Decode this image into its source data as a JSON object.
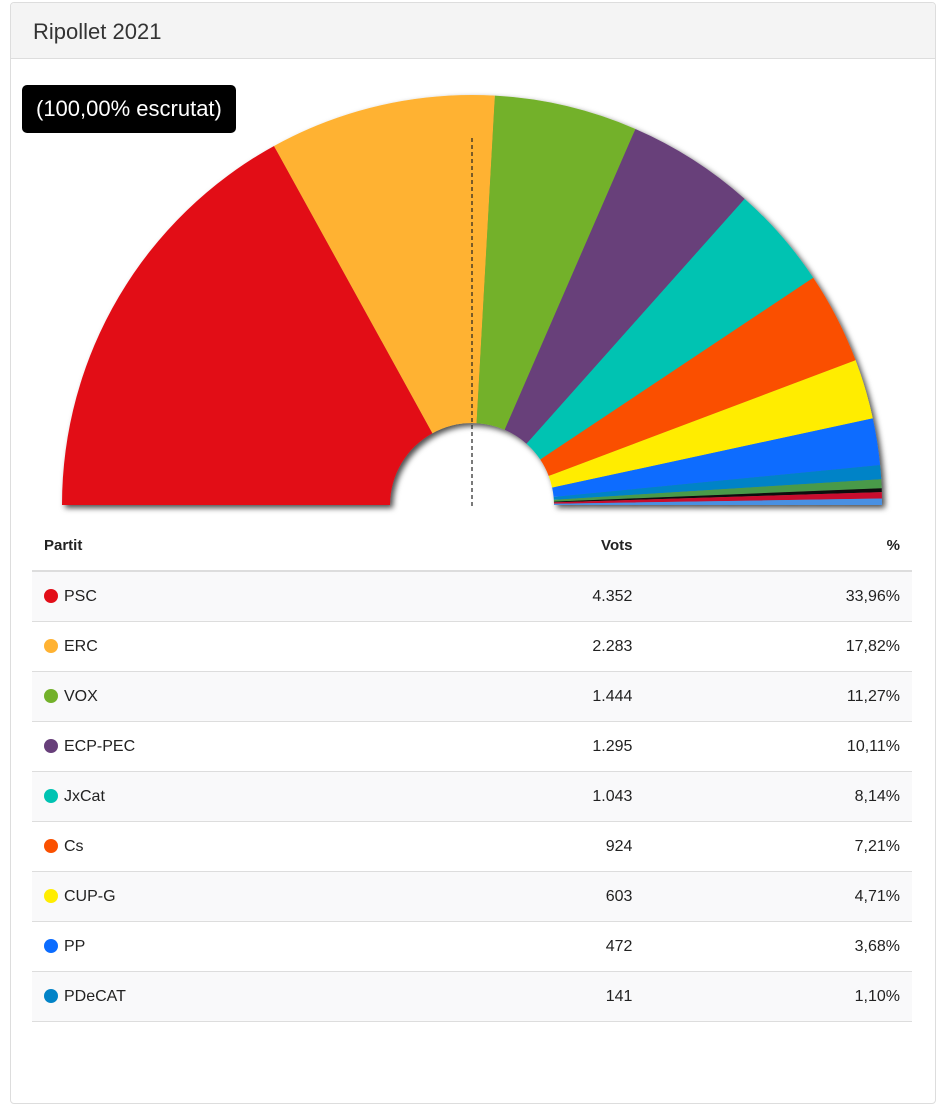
{
  "title": "Ripollet 2021",
  "badge": "(100,00% escrutat)",
  "table": {
    "headers": [
      "Partit",
      "Vots",
      "%"
    ]
  },
  "chart_data": {
    "type": "pie",
    "subtype": "semicircle-donut",
    "series": [
      {
        "name": "PSC",
        "votes": "4.352",
        "pct_label": "33,96%",
        "value": 33.96,
        "color": "#e20e18"
      },
      {
        "name": "ERC",
        "votes": "2.283",
        "pct_label": "17,82%",
        "value": 17.82,
        "color": "#ffb232"
      },
      {
        "name": "VOX",
        "votes": "1.444",
        "pct_label": "11,27%",
        "value": 11.27,
        "color": "#73b12a"
      },
      {
        "name": "ECP-PEC",
        "votes": "1.295",
        "pct_label": "10,11%",
        "value": 10.11,
        "color": "#673f7a"
      },
      {
        "name": "JxCat",
        "votes": "1.043",
        "pct_label": "8,14%",
        "value": 8.14,
        "color": "#00c3b2"
      },
      {
        "name": "Cs",
        "votes": "924",
        "pct_label": "7,21%",
        "value": 7.21,
        "color": "#fa5000"
      },
      {
        "name": "CUP-G",
        "votes": "603",
        "pct_label": "4,71%",
        "value": 4.71,
        "color": "#ffed00"
      },
      {
        "name": "PP",
        "votes": "472",
        "pct_label": "3,68%",
        "value": 3.68,
        "color": "#0b6cff"
      },
      {
        "name": "PDeCAT",
        "votes": "141",
        "pct_label": "1,10%",
        "value": 1.1,
        "color": "#0283c7"
      }
    ],
    "other_slices": [
      {
        "value": 0.7,
        "color": "#4a9a4a"
      },
      {
        "value": 0.3,
        "color": "#111111"
      },
      {
        "value": 0.5,
        "color": "#c8102e"
      },
      {
        "value": 0.5,
        "color": "#4a90e2"
      }
    ]
  }
}
